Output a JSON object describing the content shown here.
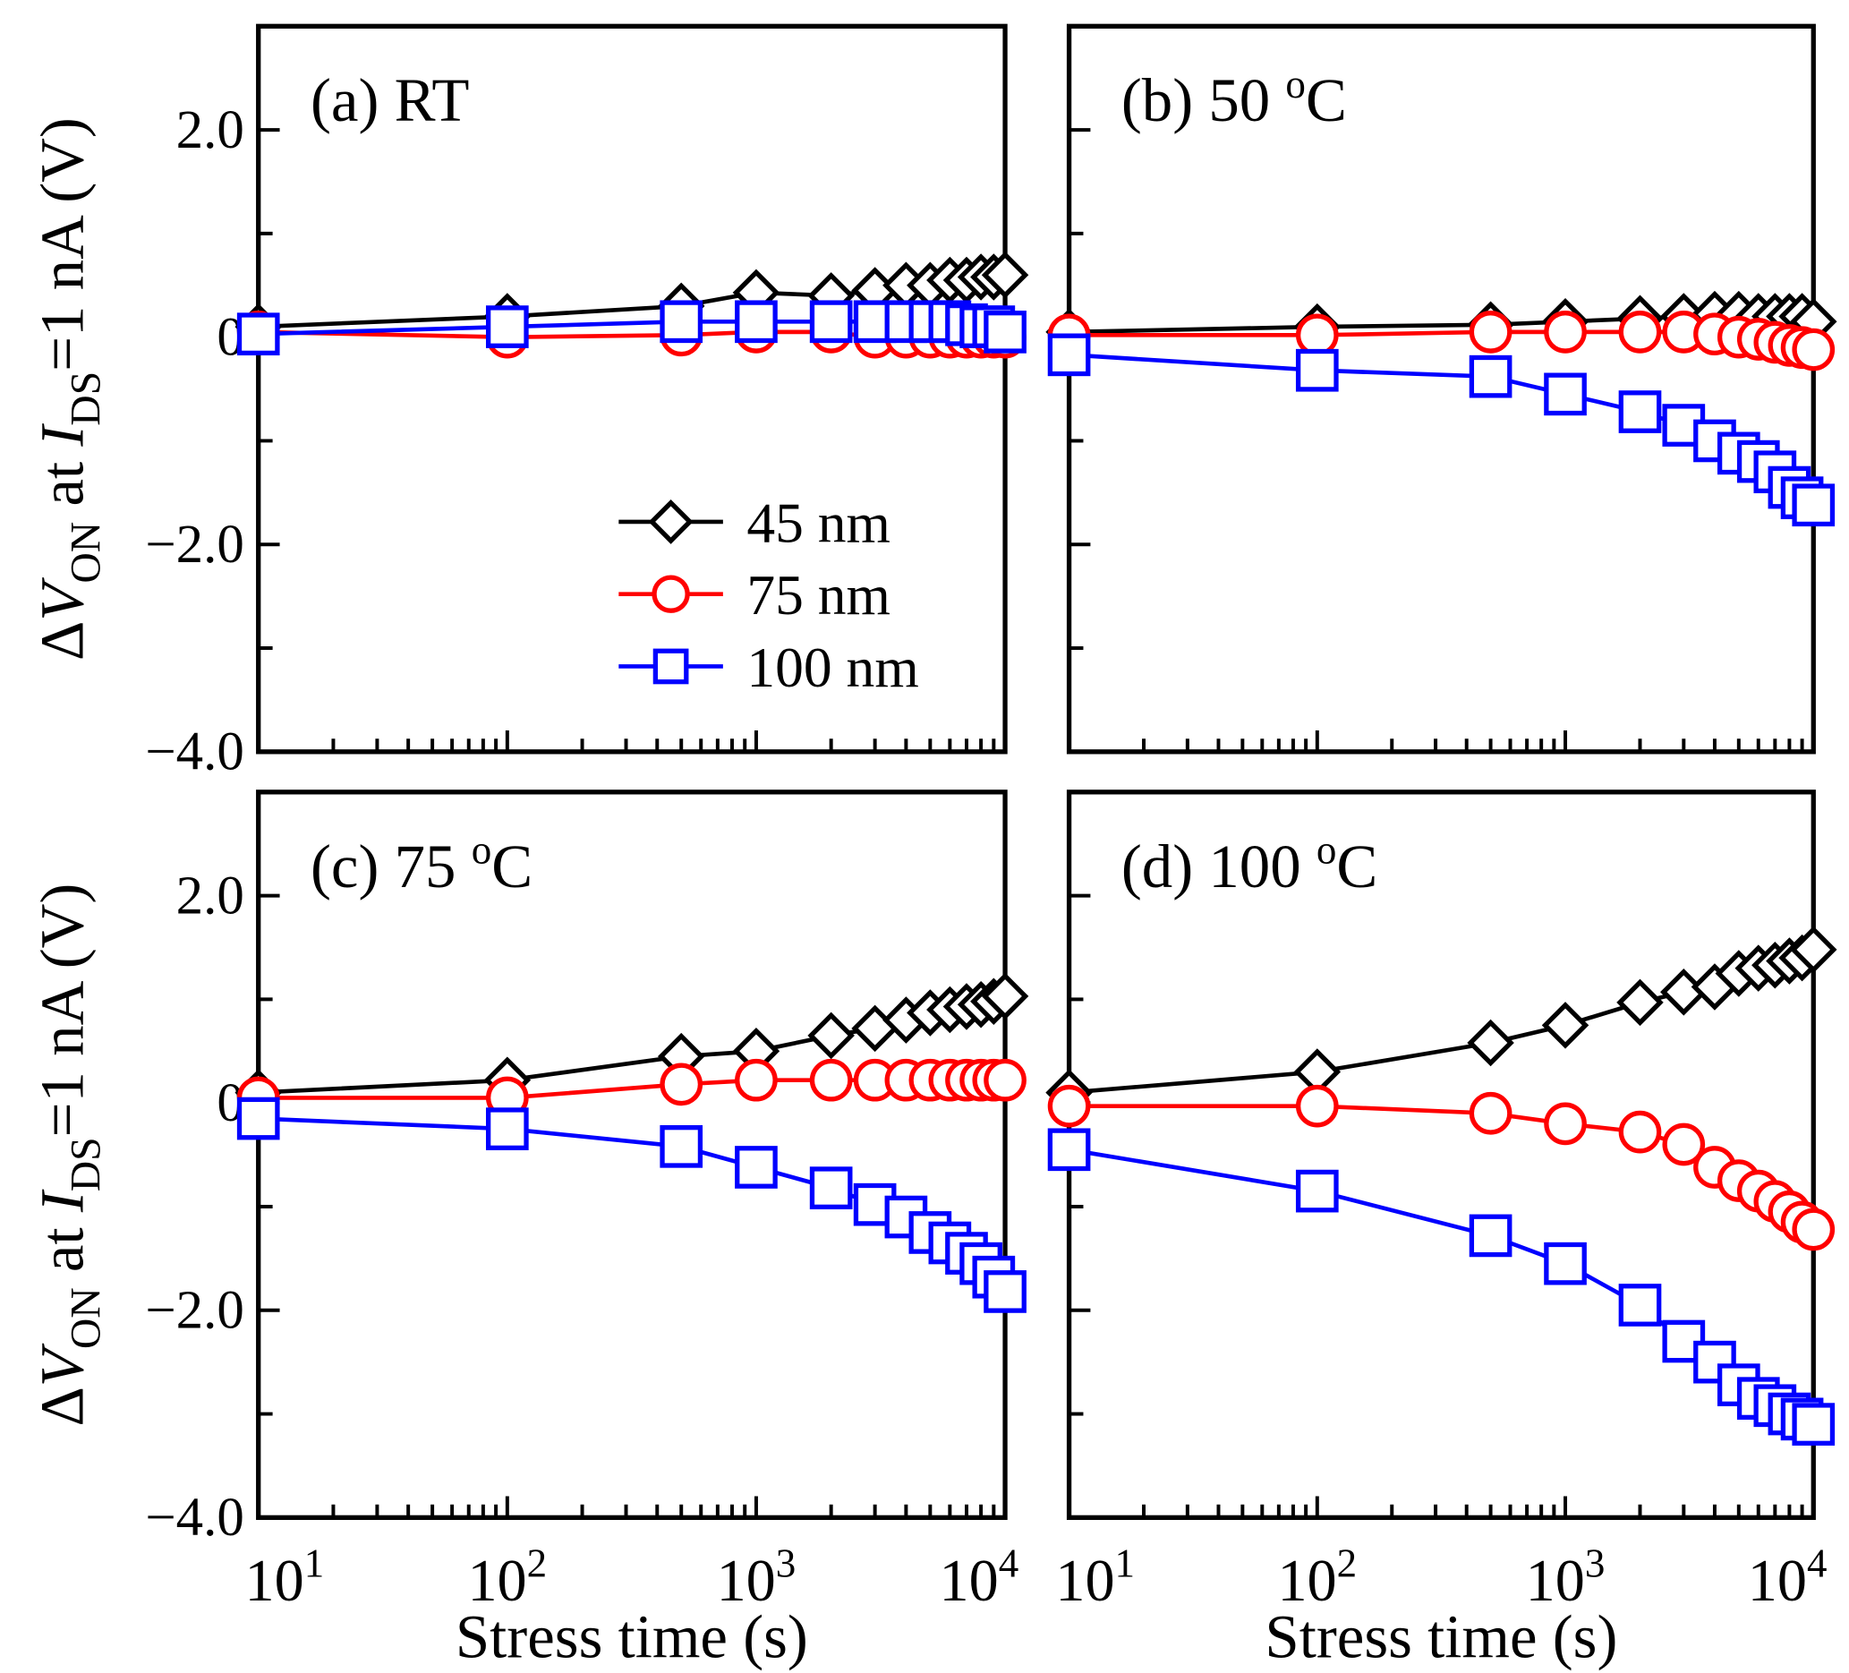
{
  "chart_data": {
    "type": "line",
    "ylabel": {
      "delta": "Δ",
      "v": "V",
      "on": "ON",
      "at": " at ",
      "i": "I",
      "ds": "DS",
      "rest": "=1 nA (V)"
    },
    "xlabel": "Stress time (s)",
    "xscale": "log",
    "xlim": [
      10,
      10000
    ],
    "ylim": [
      -4.0,
      3.0
    ],
    "xticks": [
      {
        "base": "10",
        "exp": "1"
      },
      {
        "base": "10",
        "exp": "2"
      },
      {
        "base": "10",
        "exp": "3"
      },
      {
        "base": "10",
        "exp": "4"
      }
    ],
    "yticks": [
      "2.0",
      "0",
      "−2.0",
      "−4.0"
    ],
    "x": [
      10,
      100,
      500,
      1000,
      2000,
      3000,
      4000,
      5000,
      6000,
      7000,
      8000,
      9000,
      10000
    ],
    "legend": {
      "placement": "center",
      "entries": [
        "45 nm",
        "75 nm",
        "100 nm"
      ]
    },
    "colors": {
      "45 nm": "#000000",
      "75 nm": "#ff0000",
      "100 nm": "#0000ff"
    },
    "panels": [
      {
        "label": "(a)",
        "condition": "RT",
        "sup": "",
        "unit": "",
        "series": [
          {
            "name": "45 nm",
            "marker": "diamond",
            "values": [
              0.1,
              0.2,
              0.3,
              0.43,
              0.4,
              0.45,
              0.5,
              0.5,
              0.55,
              0.55,
              0.58,
              0.58,
              0.6
            ]
          },
          {
            "name": "75 nm",
            "marker": "circle",
            "values": [
              0.05,
              0.0,
              0.02,
              0.05,
              0.05,
              0.0,
              0.0,
              0.0,
              0.0,
              0.0,
              0.0,
              0.0,
              0.0
            ]
          },
          {
            "name": "100 nm",
            "marker": "square",
            "values": [
              0.03,
              0.1,
              0.15,
              0.15,
              0.15,
              0.15,
              0.15,
              0.15,
              0.15,
              0.12,
              0.1,
              0.1,
              0.05
            ]
          }
        ]
      },
      {
        "label": "(b)",
        "condition": "50 ",
        "sup": "o",
        "unit": "C",
        "series": [
          {
            "name": "45 nm",
            "marker": "diamond",
            "values": [
              0.05,
              0.1,
              0.12,
              0.15,
              0.18,
              0.2,
              0.22,
              0.22,
              0.2,
              0.2,
              0.2,
              0.2,
              0.15
            ]
          },
          {
            "name": "75 nm",
            "marker": "circle",
            "values": [
              0.02,
              0.02,
              0.05,
              0.05,
              0.05,
              0.05,
              0.03,
              0.0,
              -0.02,
              -0.05,
              -0.08,
              -0.1,
              -0.12
            ]
          },
          {
            "name": "100 nm",
            "marker": "square",
            "values": [
              -0.17,
              -0.32,
              -0.38,
              -0.55,
              -0.72,
              -0.85,
              -1.0,
              -1.12,
              -1.2,
              -1.3,
              -1.45,
              -1.55,
              -1.62
            ]
          }
        ]
      },
      {
        "label": "(c)",
        "condition": "75 ",
        "sup": "o",
        "unit": "C",
        "series": [
          {
            "name": "45 nm",
            "marker": "diamond",
            "values": [
              0.1,
              0.22,
              0.45,
              0.5,
              0.65,
              0.72,
              0.8,
              0.87,
              0.9,
              0.93,
              0.95,
              0.98,
              1.03
            ]
          },
          {
            "name": "75 nm",
            "marker": "circle",
            "values": [
              0.05,
              0.05,
              0.18,
              0.22,
              0.22,
              0.22,
              0.22,
              0.22,
              0.22,
              0.22,
              0.22,
              0.22,
              0.22
            ]
          },
          {
            "name": "100 nm",
            "marker": "square",
            "values": [
              -0.15,
              -0.25,
              -0.42,
              -0.62,
              -0.82,
              -0.98,
              -1.1,
              -1.25,
              -1.35,
              -1.45,
              -1.55,
              -1.68,
              -1.82
            ]
          }
        ]
      },
      {
        "label": "(d)",
        "condition": "100 ",
        "sup": "o",
        "unit": "C",
        "series": [
          {
            "name": "45 nm",
            "marker": "diamond",
            "values": [
              0.1,
              0.3,
              0.58,
              0.75,
              0.97,
              1.07,
              1.12,
              1.25,
              1.3,
              1.33,
              1.37,
              1.4,
              1.48
            ]
          },
          {
            "name": "75 nm",
            "marker": "circle",
            "values": [
              -0.03,
              -0.03,
              -0.1,
              -0.2,
              -0.28,
              -0.4,
              -0.62,
              -0.75,
              -0.85,
              -0.95,
              -1.05,
              -1.15,
              -1.22
            ]
          },
          {
            "name": "100 nm",
            "marker": "square",
            "values": [
              -0.45,
              -0.85,
              -1.28,
              -1.55,
              -1.95,
              -2.3,
              -2.5,
              -2.72,
              -2.85,
              -2.92,
              -3.0,
              -3.05,
              -3.1
            ]
          }
        ]
      }
    ]
  }
}
